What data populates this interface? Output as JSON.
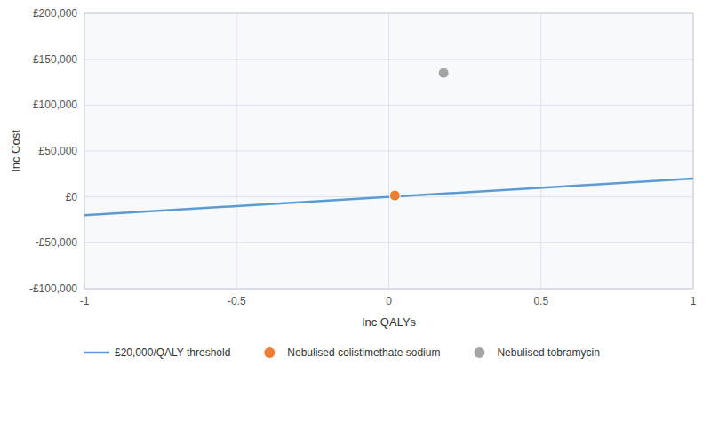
{
  "chart_data": {
    "type": "scatter",
    "xlabel": "Inc QALYs",
    "ylabel": "Inc Cost",
    "xlim": [
      -1,
      1
    ],
    "ylim": [
      -100000,
      200000
    ],
    "xticks": [
      -1,
      -0.5,
      0,
      0.5,
      1
    ],
    "yticks": [
      {
        "value": -100000,
        "label": "-£100,000"
      },
      {
        "value": -50000,
        "label": "-£50,000"
      },
      {
        "value": 0,
        "label": "£0"
      },
      {
        "value": 50000,
        "label": "£50,000"
      },
      {
        "value": 100000,
        "label": "£100,000"
      },
      {
        "value": 150000,
        "label": "£150,000"
      },
      {
        "value": 200000,
        "label": "£200,000"
      }
    ],
    "grid": true,
    "legend": "bottom",
    "series": [
      {
        "name": "£20,000/QALY threshold",
        "type": "line",
        "color": "#5B9BD5",
        "x": [
          -1,
          1
        ],
        "values": [
          -20000,
          20000
        ]
      },
      {
        "name": "Nebulised colistimethate sodium",
        "type": "scatter",
        "color": "#ED7D31",
        "x": [
          0.02
        ],
        "values": [
          1500
        ]
      },
      {
        "name": "Nebulised tobramycin",
        "type": "scatter",
        "color": "#A5A5A5",
        "x": [
          0.18
        ],
        "values": [
          135000
        ]
      }
    ]
  }
}
